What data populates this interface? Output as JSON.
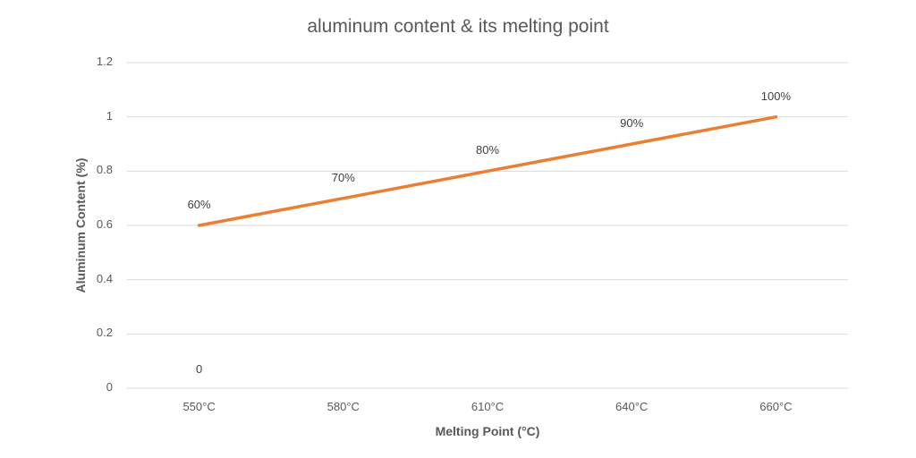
{
  "chart_data": {
    "type": "line",
    "title": "aluminum content & its melting point",
    "xlabel": "Melting Point (°C)",
    "ylabel": "Aluminum Content (%)",
    "categories": [
      "550°C",
      "580°C",
      "610°C",
      "640°C",
      "660°C"
    ],
    "series": [
      {
        "name": "Aluminum Content",
        "color": "#ED7D31",
        "values": [
          0.6,
          0.7,
          0.8,
          0.9,
          1.0
        ],
        "data_labels": [
          "60%",
          "70%",
          "80%",
          "90%",
          "100%"
        ]
      }
    ],
    "extra_annotations": [
      {
        "text": "0",
        "category": "550°C",
        "y": 0.05
      }
    ],
    "ylim": [
      0,
      1.2
    ],
    "yticks": [
      "0",
      "0.2",
      "0.4",
      "0.6",
      "0.8",
      "1",
      "1.2"
    ],
    "grid": true,
    "legend": null
  }
}
